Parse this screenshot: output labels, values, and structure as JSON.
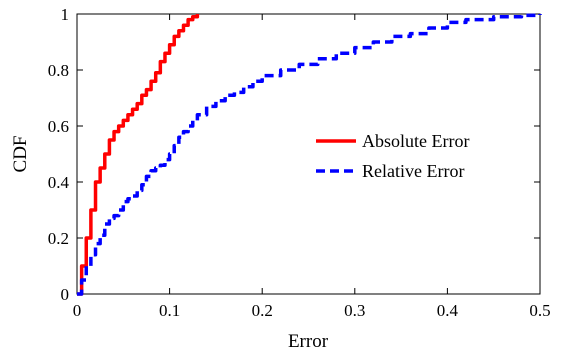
{
  "chart_data": {
    "type": "line",
    "xlabel": "Error",
    "ylabel": "CDF",
    "xlim": [
      0,
      0.5
    ],
    "ylim": [
      0,
      1
    ],
    "xticks": [
      "0",
      "0.1",
      "0.2",
      "0.3",
      "0.4",
      "0.5"
    ],
    "yticks": [
      "0",
      "0.2",
      "0.4",
      "0.6",
      "0.8",
      "1"
    ],
    "grid": false,
    "legend_position": "center-right",
    "series": [
      {
        "name": "Absolute Error",
        "color": "#ff0000",
        "style": "solid",
        "x": [
          0,
          0.005,
          0.01,
          0.015,
          0.02,
          0.025,
          0.03,
          0.035,
          0.04,
          0.045,
          0.05,
          0.055,
          0.06,
          0.065,
          0.07,
          0.075,
          0.08,
          0.085,
          0.09,
          0.095,
          0.1,
          0.105,
          0.11,
          0.115,
          0.12,
          0.125,
          0.13
        ],
        "y": [
          0,
          0.1,
          0.2,
          0.3,
          0.4,
          0.45,
          0.5,
          0.55,
          0.58,
          0.6,
          0.62,
          0.64,
          0.66,
          0.68,
          0.71,
          0.73,
          0.76,
          0.79,
          0.83,
          0.86,
          0.89,
          0.92,
          0.94,
          0.96,
          0.98,
          0.99,
          1.0
        ]
      },
      {
        "name": "Relative Error",
        "color": "#0000ff",
        "style": "dashed",
        "x": [
          0,
          0.005,
          0.01,
          0.015,
          0.02,
          0.025,
          0.03,
          0.035,
          0.04,
          0.045,
          0.05,
          0.055,
          0.06,
          0.065,
          0.07,
          0.075,
          0.08,
          0.085,
          0.09,
          0.095,
          0.1,
          0.105,
          0.11,
          0.115,
          0.12,
          0.125,
          0.13,
          0.14,
          0.15,
          0.16,
          0.17,
          0.18,
          0.19,
          0.2,
          0.22,
          0.24,
          0.26,
          0.28,
          0.3,
          0.32,
          0.34,
          0.36,
          0.38,
          0.4,
          0.42,
          0.45,
          0.48,
          0.5
        ],
        "y": [
          0,
          0.05,
          0.1,
          0.14,
          0.18,
          0.21,
          0.25,
          0.27,
          0.28,
          0.3,
          0.33,
          0.34,
          0.35,
          0.37,
          0.39,
          0.42,
          0.44,
          0.45,
          0.46,
          0.48,
          0.5,
          0.53,
          0.56,
          0.58,
          0.6,
          0.62,
          0.64,
          0.67,
          0.69,
          0.71,
          0.72,
          0.74,
          0.76,
          0.78,
          0.8,
          0.82,
          0.84,
          0.86,
          0.88,
          0.9,
          0.92,
          0.93,
          0.95,
          0.97,
          0.98,
          0.99,
          0.995,
          1.0
        ]
      }
    ]
  }
}
